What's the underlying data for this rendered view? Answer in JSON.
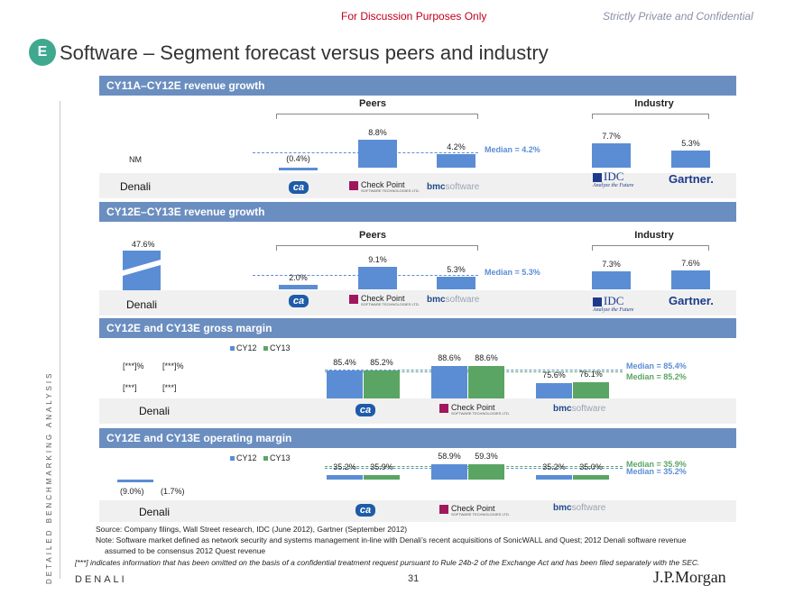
{
  "header": {
    "discussion": "For Discussion Purposes Only",
    "confidential": "Strictly Private and Confidential"
  },
  "badge": "E",
  "title": "Software – Segment forecast versus peers and industry",
  "side_text": "DETAILED BENCHMARKING ANALYSIS",
  "sections": {
    "s1": {
      "title": "CY11A–CY12E revenue growth",
      "peers_label": "Peers",
      "industry_label": "Industry",
      "denali_value": "NM",
      "median": "Median = 4.2%",
      "bars": [
        {
          "company": "CA",
          "value": -0.4,
          "label": "(0.4%)"
        },
        {
          "company": "Check Point",
          "value": 8.8,
          "label": "8.8%"
        },
        {
          "company": "BMC",
          "value": 4.2,
          "label": "4.2%"
        },
        {
          "company": "IDC",
          "value": 7.7,
          "label": "7.7%"
        },
        {
          "company": "Gartner",
          "value": 5.3,
          "label": "5.3%"
        }
      ]
    },
    "s2": {
      "title": "CY12E–CY13E revenue growth",
      "peers_label": "Peers",
      "industry_label": "Industry",
      "denali_value": "47.6%",
      "median": "Median = 5.3%",
      "bars": [
        {
          "company": "CA",
          "value": 2.0,
          "label": "2.0%"
        },
        {
          "company": "Check Point",
          "value": 9.1,
          "label": "9.1%"
        },
        {
          "company": "BMC",
          "value": 5.3,
          "label": "5.3%"
        },
        {
          "company": "IDC",
          "value": 7.3,
          "label": "7.3%"
        },
        {
          "company": "Gartner",
          "value": 7.6,
          "label": "7.6%"
        }
      ]
    },
    "s3": {
      "title": "CY12E and CY13E gross margin",
      "legend": [
        "CY12",
        "CY13"
      ],
      "denali_cy12": "[***]%",
      "denali_cy13": "[***]%",
      "denali_cy12_b": "[***]",
      "denali_cy13_b": "[***]",
      "median_cy12": "Median = 85.4%",
      "median_cy13": "Median = 85.2%",
      "bars": [
        {
          "company": "CA",
          "cy12": 85.4,
          "cy13": 85.2,
          "cy12_label": "85.4%",
          "cy13_label": "85.2%"
        },
        {
          "company": "Check Point",
          "cy12": 88.6,
          "cy13": 88.6,
          "cy12_label": "88.6%",
          "cy13_label": "88.6%"
        },
        {
          "company": "BMC",
          "cy12": 75.6,
          "cy13": 76.1,
          "cy12_label": "75.6%",
          "cy13_label": "76.1%"
        }
      ]
    },
    "s4": {
      "title": "CY12E and CY13E operating margin",
      "legend": [
        "CY12",
        "CY13"
      ],
      "denali_cy12": "(9.0%)",
      "denali_cy13": "(1.7%)",
      "median_cy13": "Median = 35.9%",
      "median_cy12": "Median = 35.2%",
      "bars": [
        {
          "company": "CA",
          "cy12": 35.2,
          "cy13": 35.9,
          "cy12_label": "35.2%",
          "cy13_label": "35.9%"
        },
        {
          "company": "Check Point",
          "cy12": 58.9,
          "cy13": 59.3,
          "cy12_label": "58.9%",
          "cy13_label": "59.3%"
        },
        {
          "company": "BMC",
          "cy12": 35.2,
          "cy13": 35.0,
          "cy12_label": "35.2%",
          "cy13_label": "35.0%"
        }
      ]
    }
  },
  "logos": {
    "denali": "Denali",
    "ca": "ca",
    "checkpoint": "Check Point",
    "checkpoint_sub": "SOFTWARE TECHNOLOGIES LTD.",
    "bmc": "bmc",
    "bmc_soft": "software",
    "idc": "IDC",
    "idc_tag": "Analyze the Future",
    "gartner": "Gartner."
  },
  "source": "Source: Company filings, Wall Street research, IDC (June 2012), Gartner (September 2012)",
  "note1": "Note: Software market defined as network security and systems management in-line with Denali’s recent acquisitions of SonicWALL and Quest; 2012 Denali software revenue",
  "note2": "assumed to be consensus 2012 Quest revenue",
  "disclaimer": "[***] indicates information that has been omitted on the basis of a confidential treatment request pursuant to Rule 24b-2 of the Exchange Act and has been filed separately with the SEC.",
  "footer": {
    "left": "DENALI",
    "page": "31",
    "brand": "J.P.Morgan"
  },
  "colors": {
    "cy12": "#5b8dd5",
    "cy13": "#5aa563",
    "section": "#6b8ec0",
    "badge": "#3fa88e"
  }
}
